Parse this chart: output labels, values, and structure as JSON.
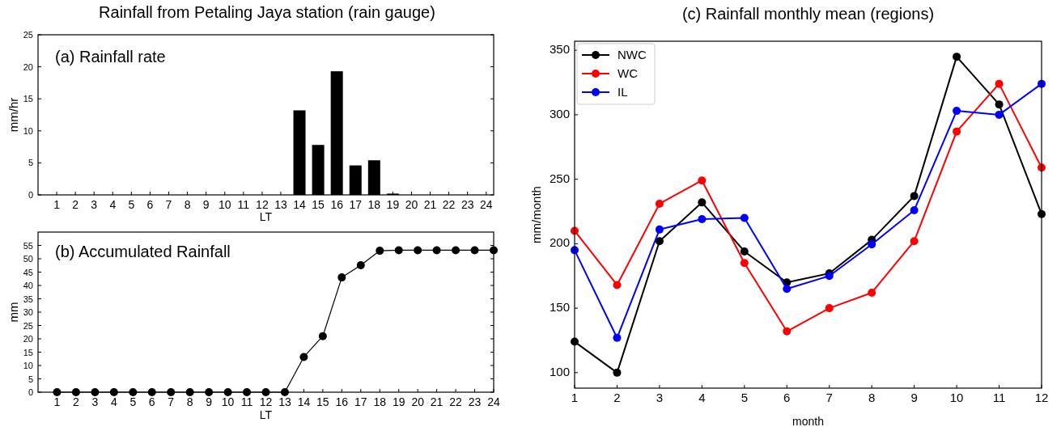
{
  "chart_data": [
    {
      "type": "bar",
      "title": "Rainfall from Petaling Jaya station (rain gauge)",
      "annotations": [
        "(a) Rainfall rate"
      ],
      "xlabel": "LT",
      "ylabel": "mm/hr",
      "x": [
        1,
        2,
        3,
        4,
        5,
        6,
        7,
        8,
        9,
        10,
        11,
        12,
        13,
        14,
        15,
        16,
        17,
        18,
        19,
        20,
        21,
        22,
        23,
        24
      ],
      "values": [
        0,
        0,
        0,
        0,
        0,
        0,
        0,
        0,
        0,
        0,
        0,
        0,
        0,
        13.2,
        7.8,
        19.3,
        4.6,
        5.4,
        0.2,
        0,
        0,
        0,
        0,
        0
      ],
      "color": "#000000",
      "xlim": [
        0,
        24.4
      ],
      "xticks": [
        1,
        2,
        3,
        4,
        5,
        6,
        7,
        8,
        9,
        10,
        11,
        12,
        13,
        14,
        15,
        16,
        17,
        18,
        19,
        20,
        21,
        22,
        23,
        24
      ],
      "ylim": [
        0,
        25
      ],
      "yticks": [
        0,
        5,
        10,
        15,
        20,
        25
      ]
    },
    {
      "type": "line",
      "annotations": [
        "(b) Accumulated Rainfall"
      ],
      "xlabel": "LT",
      "ylabel": "mm",
      "x": [
        1,
        2,
        3,
        4,
        5,
        6,
        7,
        8,
        9,
        10,
        11,
        12,
        13,
        14,
        15,
        16,
        17,
        18,
        19,
        20,
        21,
        22,
        23,
        24
      ],
      "values": [
        0,
        0,
        0,
        0,
        0,
        0,
        0,
        0,
        0,
        0,
        0,
        0,
        0,
        13.2,
        21,
        43,
        47.6,
        53,
        53.2,
        53.2,
        53.2,
        53.2,
        53.2,
        53.2
      ],
      "color": "#000000",
      "marker": "circle",
      "xlim": [
        0,
        24
      ],
      "xticks": [
        1,
        2,
        3,
        4,
        5,
        6,
        7,
        8,
        9,
        10,
        11,
        12,
        13,
        14,
        15,
        16,
        17,
        18,
        19,
        20,
        21,
        22,
        23,
        24
      ],
      "ylim": [
        0,
        60
      ],
      "yticks": [
        0,
        5,
        10,
        15,
        20,
        25,
        30,
        35,
        40,
        45,
        50,
        55
      ]
    },
    {
      "type": "line",
      "title": "(c) Rainfall monthly mean (regions)",
      "xlabel": "month",
      "ylabel": "mm/month",
      "x": [
        1,
        2,
        3,
        4,
        5,
        6,
        7,
        8,
        9,
        10,
        11,
        12
      ],
      "marker": "circle",
      "legend": "top left",
      "xlim": [
        1,
        12
      ],
      "xticks": [
        1,
        2,
        3,
        4,
        5,
        6,
        7,
        8,
        9,
        10,
        11,
        12
      ],
      "ylim": [
        88,
        357
      ],
      "yticks": [
        100,
        150,
        200,
        250,
        300,
        350
      ],
      "series": [
        {
          "name": "NWC",
          "color": "#000000",
          "values": [
            124,
            100,
            202,
            232,
            194,
            170,
            177,
            203,
            237,
            345,
            308,
            223
          ]
        },
        {
          "name": "WC",
          "color": "#ff0000",
          "values": [
            210,
            168,
            231,
            249,
            185,
            132,
            150,
            162,
            202,
            287,
            324,
            259
          ]
        },
        {
          "name": "IL",
          "color": "#0000ff",
          "values": [
            195,
            127,
            211,
            219,
            220,
            165,
            175,
            199.5,
            226,
            303,
            300,
            324
          ]
        }
      ]
    }
  ]
}
